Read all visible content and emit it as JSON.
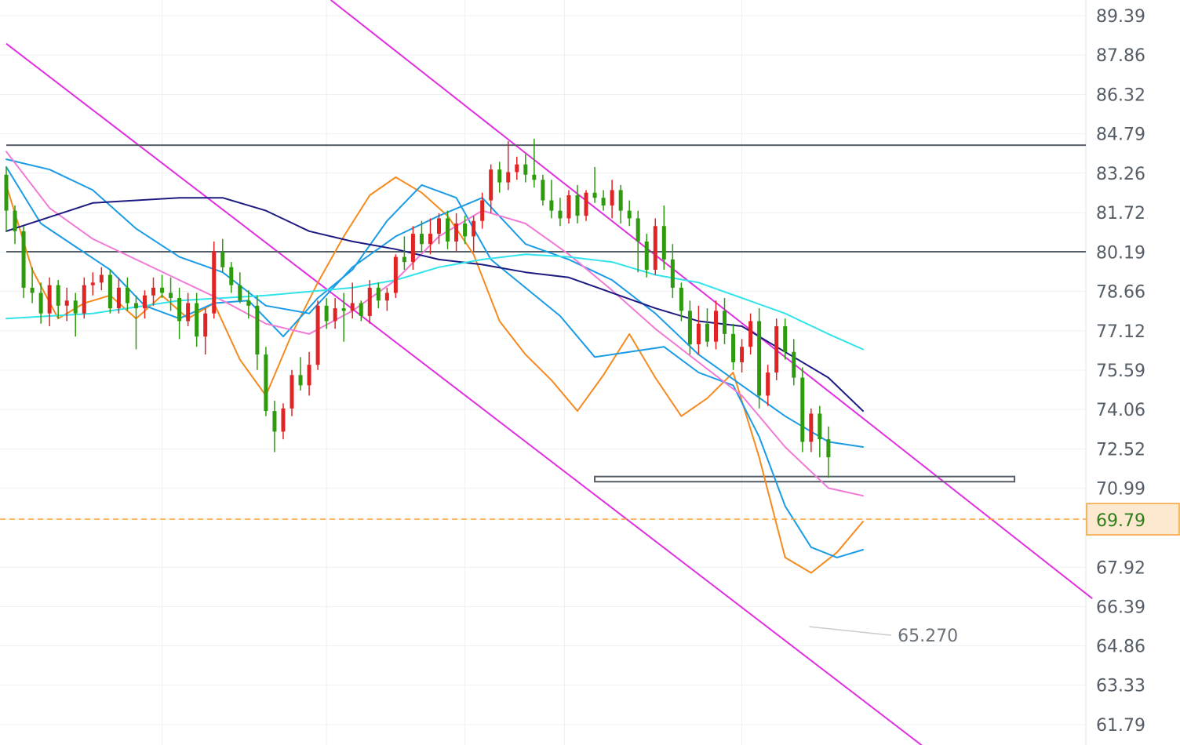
{
  "chart_data": {
    "type": "candlestick",
    "title": "",
    "y_axis": {
      "position": "right",
      "range": [
        61.0,
        90.0
      ],
      "ticks": [
        "89.39",
        "87.86",
        "86.32",
        "84.79",
        "83.26",
        "81.72",
        "80.19",
        "78.66",
        "77.12",
        "75.59",
        "74.06",
        "72.52",
        "70.99",
        "69.79",
        "67.92",
        "66.39",
        "64.86",
        "63.33",
        "61.79"
      ]
    },
    "grid": true,
    "x_range": [
      0,
      110
    ],
    "colors": {
      "up": "#e02424",
      "down": "#2e9a0e",
      "ma_fast": "#f58a1f",
      "ma_mid": "#1a9be6",
      "ma_pink": "#f07ad6",
      "ma_navy": "#1c1a80",
      "ma_cyan": "#31e3ea",
      "channel": "#e02fe0",
      "level": "#555d66",
      "last_price": "#f5a23c"
    },
    "last_price": 69.79,
    "low_annotation": {
      "label": "65.270",
      "x": 103,
      "y": 65.27
    },
    "candles": [
      [
        83.2,
        83.5,
        81.0,
        81.8
      ],
      [
        81.8,
        82.0,
        80.5,
        81.0
      ],
      [
        81.0,
        81.2,
        78.4,
        78.8
      ],
      [
        78.8,
        79.6,
        78.2,
        78.6
      ],
      [
        78.6,
        79.0,
        77.4,
        77.8
      ],
      [
        77.8,
        79.2,
        77.3,
        78.9
      ],
      [
        78.9,
        79.1,
        77.6,
        78.1
      ],
      [
        78.1,
        78.8,
        77.5,
        78.3
      ],
      [
        78.3,
        78.6,
        76.9,
        77.8
      ],
      [
        77.8,
        79.2,
        77.6,
        78.9
      ],
      [
        78.9,
        79.4,
        78.5,
        79.0
      ],
      [
        79.0,
        79.6,
        78.7,
        79.3
      ],
      [
        79.3,
        79.5,
        77.8,
        78.0
      ],
      [
        78.0,
        79.2,
        77.8,
        78.8
      ],
      [
        78.8,
        79.2,
        77.9,
        78.2
      ],
      [
        78.2,
        78.5,
        76.4,
        78.0
      ],
      [
        78.0,
        78.7,
        77.6,
        78.5
      ],
      [
        78.5,
        79.2,
        78.1,
        78.8
      ],
      [
        78.8,
        79.3,
        78.4,
        78.6
      ],
      [
        78.6,
        79.2,
        77.9,
        78.4
      ],
      [
        78.4,
        78.8,
        76.8,
        77.5
      ],
      [
        77.5,
        78.6,
        77.3,
        78.2
      ],
      [
        78.2,
        78.6,
        76.5,
        76.9
      ],
      [
        76.9,
        78.0,
        76.2,
        77.8
      ],
      [
        77.8,
        80.6,
        77.6,
        80.2
      ],
      [
        80.2,
        80.7,
        79.4,
        79.6
      ],
      [
        79.6,
        79.8,
        78.6,
        78.9
      ],
      [
        78.9,
        79.4,
        78.2,
        78.3
      ],
      [
        78.3,
        78.7,
        77.6,
        78.1
      ],
      [
        78.1,
        78.5,
        75.6,
        76.2
      ],
      [
        76.2,
        76.5,
        73.8,
        74.0
      ],
      [
        74.0,
        74.4,
        72.4,
        73.2
      ],
      [
        73.2,
        74.3,
        72.9,
        74.1
      ],
      [
        74.1,
        75.6,
        73.8,
        75.4
      ],
      [
        75.4,
        76.1,
        74.8,
        75.0
      ],
      [
        75.0,
        76.3,
        74.6,
        75.8
      ],
      [
        75.8,
        78.3,
        75.6,
        78.1
      ],
      [
        78.1,
        78.4,
        77.2,
        77.5
      ],
      [
        77.5,
        78.4,
        77.2,
        78.0
      ],
      [
        78.0,
        78.6,
        76.7,
        77.9
      ],
      [
        77.9,
        79.0,
        77.6,
        78.2
      ],
      [
        78.2,
        78.3,
        77.5,
        77.7
      ],
      [
        77.7,
        79.1,
        77.4,
        78.8
      ],
      [
        78.8,
        79.0,
        78.0,
        78.3
      ],
      [
        78.3,
        78.8,
        77.9,
        78.6
      ],
      [
        78.6,
        80.1,
        78.4,
        80.0
      ],
      [
        80.0,
        80.8,
        79.5,
        79.8
      ],
      [
        79.8,
        81.2,
        79.5,
        80.9
      ],
      [
        80.9,
        81.4,
        80.2,
        80.5
      ],
      [
        80.5,
        81.5,
        80.1,
        80.9
      ],
      [
        80.9,
        81.7,
        80.5,
        81.5
      ],
      [
        81.5,
        81.8,
        80.3,
        80.6
      ],
      [
        80.6,
        81.7,
        80.2,
        81.3
      ],
      [
        81.3,
        81.6,
        80.5,
        80.8
      ],
      [
        80.8,
        81.6,
        80.2,
        81.4
      ],
      [
        81.4,
        82.5,
        81.1,
        82.2
      ],
      [
        82.2,
        83.6,
        81.7,
        83.4
      ],
      [
        83.4,
        83.7,
        82.5,
        82.9
      ],
      [
        82.9,
        84.5,
        82.6,
        83.3
      ],
      [
        83.3,
        83.9,
        83.0,
        83.6
      ],
      [
        83.6,
        84.0,
        82.9,
        83.2
      ],
      [
        83.2,
        84.6,
        82.7,
        83.0
      ],
      [
        83.0,
        83.2,
        82.0,
        82.2
      ],
      [
        82.2,
        83.0,
        81.5,
        81.8
      ],
      [
        81.8,
        82.3,
        81.2,
        81.5
      ],
      [
        81.5,
        82.6,
        81.3,
        82.4
      ],
      [
        82.4,
        82.8,
        81.3,
        81.6
      ],
      [
        81.6,
        82.6,
        81.4,
        82.5
      ],
      [
        82.5,
        83.5,
        82.1,
        82.3
      ],
      [
        82.3,
        82.6,
        81.8,
        82.0
      ],
      [
        82.0,
        83.0,
        81.5,
        82.6
      ],
      [
        82.6,
        82.8,
        81.3,
        81.8
      ],
      [
        81.8,
        82.2,
        81.2,
        81.5
      ],
      [
        81.5,
        81.8,
        79.4,
        80.6
      ],
      [
        80.6,
        80.9,
        79.2,
        79.5
      ],
      [
        79.5,
        81.5,
        79.3,
        81.2
      ],
      [
        81.2,
        82.0,
        79.5,
        79.9
      ],
      [
        79.9,
        80.5,
        78.4,
        78.8
      ],
      [
        78.8,
        79.0,
        77.5,
        77.9
      ],
      [
        77.9,
        78.3,
        76.2,
        76.6
      ],
      [
        76.6,
        78.1,
        76.2,
        77.4
      ],
      [
        77.4,
        78.0,
        76.5,
        76.7
      ],
      [
        76.7,
        78.3,
        76.4,
        77.9
      ],
      [
        77.9,
        78.4,
        76.6,
        77.0
      ],
      [
        77.0,
        77.4,
        75.6,
        75.9
      ],
      [
        75.9,
        76.8,
        75.5,
        76.5
      ],
      [
        76.5,
        77.8,
        76.2,
        77.5
      ],
      [
        77.5,
        78.0,
        74.1,
        74.6
      ],
      [
        74.6,
        75.8,
        74.2,
        75.5
      ],
      [
        75.5,
        77.6,
        75.2,
        77.3
      ],
      [
        77.3,
        77.6,
        76.0,
        76.3
      ],
      [
        76.3,
        76.8,
        75.0,
        75.3
      ],
      [
        75.3,
        75.7,
        72.4,
        72.8
      ],
      [
        72.8,
        74.1,
        72.4,
        73.9
      ],
      [
        73.9,
        74.2,
        72.2,
        72.9
      ],
      [
        72.9,
        73.4,
        71.4,
        72.2
      ]
    ],
    "overlays": [
      {
        "key": "ma_fast",
        "w": 2,
        "pts": [
          [
            0,
            82.8
          ],
          [
            3,
            79.5
          ],
          [
            6,
            77.6
          ],
          [
            9,
            78.2
          ],
          [
            12,
            78.5
          ],
          [
            15,
            77.6
          ],
          [
            18,
            78.5
          ],
          [
            21,
            77.6
          ],
          [
            24,
            78.2
          ],
          [
            27,
            76.0
          ],
          [
            30,
            74.6
          ],
          [
            33,
            77.0
          ],
          [
            36,
            79.0
          ],
          [
            39,
            80.8
          ],
          [
            42,
            82.4
          ],
          [
            45,
            83.1
          ],
          [
            48,
            82.5
          ],
          [
            51,
            81.6
          ],
          [
            54,
            80.1
          ],
          [
            57,
            77.5
          ],
          [
            60,
            76.2
          ],
          [
            63,
            75.2
          ],
          [
            66,
            74.0
          ],
          [
            69,
            75.4
          ],
          [
            72,
            77.0
          ],
          [
            75,
            75.3
          ],
          [
            78,
            73.8
          ],
          [
            81,
            74.5
          ],
          [
            84,
            75.5
          ],
          [
            87,
            72.2
          ],
          [
            90,
            68.3
          ],
          [
            93,
            67.7
          ],
          [
            96,
            68.5
          ],
          [
            99,
            69.7
          ]
        ]
      },
      {
        "key": "ma_mid",
        "w": 2,
        "pts": [
          [
            0,
            83.5
          ],
          [
            4,
            81.3
          ],
          [
            8,
            80.4
          ],
          [
            12,
            79.5
          ],
          [
            16,
            78.1
          ],
          [
            20,
            77.6
          ],
          [
            24,
            78.2
          ],
          [
            28,
            78.3
          ],
          [
            32,
            76.9
          ],
          [
            36,
            78.4
          ],
          [
            40,
            79.5
          ],
          [
            44,
            81.4
          ],
          [
            48,
            82.8
          ],
          [
            52,
            82.3
          ],
          [
            56,
            79.9
          ],
          [
            60,
            78.8
          ],
          [
            64,
            77.7
          ],
          [
            68,
            76.1
          ],
          [
            72,
            76.3
          ],
          [
            76,
            76.5
          ],
          [
            80,
            75.5
          ],
          [
            84,
            75.0
          ],
          [
            87,
            73.0
          ],
          [
            90,
            70.3
          ],
          [
            93,
            68.7
          ],
          [
            96,
            68.3
          ],
          [
            99,
            68.6
          ]
        ]
      },
      {
        "key": "ma_mid",
        "w": 2,
        "pts": [
          [
            0,
            83.8
          ],
          [
            5,
            83.4
          ],
          [
            10,
            82.6
          ],
          [
            15,
            81.1
          ],
          [
            20,
            80.0
          ],
          [
            25,
            79.4
          ],
          [
            30,
            78.1
          ],
          [
            35,
            77.8
          ],
          [
            40,
            79.6
          ],
          [
            45,
            80.8
          ],
          [
            50,
            81.6
          ],
          [
            55,
            82.3
          ],
          [
            60,
            80.5
          ],
          [
            65,
            79.9
          ],
          [
            70,
            79.1
          ],
          [
            75,
            77.8
          ],
          [
            80,
            76.2
          ],
          [
            85,
            75.0
          ],
          [
            90,
            73.8
          ],
          [
            95,
            72.8
          ],
          [
            99,
            72.6
          ]
        ]
      },
      {
        "key": "ma_pink",
        "w": 2,
        "pts": [
          [
            0,
            84.1
          ],
          [
            5,
            81.9
          ],
          [
            10,
            80.7
          ],
          [
            15,
            79.9
          ],
          [
            20,
            79.1
          ],
          [
            25,
            78.3
          ],
          [
            30,
            77.4
          ],
          [
            35,
            77.0
          ],
          [
            40,
            77.9
          ],
          [
            45,
            79.1
          ],
          [
            50,
            80.8
          ],
          [
            55,
            81.8
          ],
          [
            60,
            81.3
          ],
          [
            65,
            80.1
          ],
          [
            70,
            78.7
          ],
          [
            75,
            77.2
          ],
          [
            80,
            75.9
          ],
          [
            85,
            74.6
          ],
          [
            90,
            72.6
          ],
          [
            95,
            71.0
          ],
          [
            99,
            70.7
          ]
        ]
      },
      {
        "key": "ma_navy",
        "w": 2,
        "pts": [
          [
            0,
            81.0
          ],
          [
            10,
            82.1
          ],
          [
            20,
            82.3
          ],
          [
            25,
            82.3
          ],
          [
            30,
            81.8
          ],
          [
            35,
            81.0
          ],
          [
            40,
            80.6
          ],
          [
            45,
            80.3
          ],
          [
            50,
            79.9
          ],
          [
            55,
            79.7
          ],
          [
            60,
            79.4
          ],
          [
            65,
            79.2
          ],
          [
            70,
            78.6
          ],
          [
            75,
            78.0
          ],
          [
            80,
            77.5
          ],
          [
            85,
            77.3
          ],
          [
            90,
            76.3
          ],
          [
            95,
            75.3
          ],
          [
            99,
            74.0
          ]
        ]
      },
      {
        "key": "ma_cyan",
        "w": 2,
        "pts": [
          [
            0,
            77.6
          ],
          [
            10,
            77.8
          ],
          [
            20,
            78.3
          ],
          [
            30,
            78.5
          ],
          [
            40,
            78.8
          ],
          [
            45,
            79.1
          ],
          [
            50,
            79.6
          ],
          [
            55,
            79.9
          ],
          [
            60,
            80.1
          ],
          [
            65,
            80.0
          ],
          [
            70,
            79.8
          ],
          [
            75,
            79.3
          ],
          [
            80,
            79.0
          ],
          [
            85,
            78.4
          ],
          [
            90,
            77.8
          ],
          [
            95,
            77.0
          ],
          [
            99,
            76.4
          ]
        ]
      }
    ],
    "channel_lines": [
      {
        "from": [
          0,
          88.3
        ],
        "to": [
          110,
          59.9
        ]
      },
      {
        "from": [
          37.5,
          90.0
        ],
        "to": [
          125.5,
          66.7
        ]
      }
    ],
    "levels": [
      {
        "y": 84.35,
        "x0": 0,
        "x1": 125.5
      },
      {
        "y": 80.2,
        "x0": 0,
        "x1": 125.5
      }
    ],
    "zone": {
      "x0": 68,
      "x1": 116.5,
      "y0": 71.45,
      "y1": 71.25
    }
  }
}
